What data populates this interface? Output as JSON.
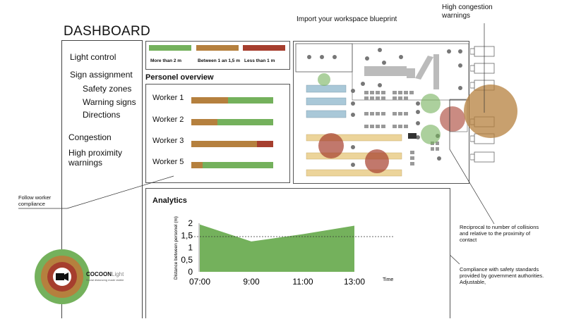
{
  "page_title": "DASHBOARD",
  "colors": {
    "green": "#74b15c",
    "brown": "#b5803e",
    "red": "#a63e2e",
    "table_blue": "#a9c8d8",
    "table_tan": "#ecd49a"
  },
  "sidebar": {
    "items": [
      {
        "label": "Light control"
      },
      {
        "label": "Sign assignment"
      },
      {
        "label": "Safety zones"
      },
      {
        "label": "Warning signs"
      },
      {
        "label": "Directions"
      },
      {
        "label": "Congestion"
      },
      {
        "label": "High proximity warnings"
      }
    ]
  },
  "legend": [
    {
      "label": "More than 2 m",
      "color": "#74b15c"
    },
    {
      "label": "Between 1 an 1,5 m",
      "color": "#b5803e"
    },
    {
      "label": "Less than 1 m",
      "color": "#a63e2e"
    }
  ],
  "personnel": {
    "title": "Personel overview",
    "workers": [
      {
        "label": "Worker 1",
        "segments": [
          {
            "color": "#b5803e",
            "frac": 0.45
          },
          {
            "color": "#74b15c",
            "frac": 0.55
          }
        ]
      },
      {
        "label": "Worker 2",
        "segments": [
          {
            "color": "#b5803e",
            "frac": 0.32
          },
          {
            "color": "#74b15c",
            "frac": 0.68
          }
        ]
      },
      {
        "label": "Worker 3",
        "segments": [
          {
            "color": "#b5803e",
            "frac": 0.8
          },
          {
            "color": "#a63e2e",
            "frac": 0.2
          }
        ]
      },
      {
        "label": "Worker 5",
        "segments": [
          {
            "color": "#b5803e",
            "frac": 0.14
          },
          {
            "color": "#74b15c",
            "frac": 0.86
          }
        ]
      }
    ]
  },
  "blueprint": {
    "import_label": "Import your workspace blueprint",
    "congestion_label": "High congestion warnings"
  },
  "analytics": {
    "title": "Analytics"
  },
  "chart_data": {
    "type": "area",
    "x": [
      "07:00",
      "9:00",
      "11:00",
      "13:00"
    ],
    "values": [
      1.95,
      1.25,
      1.55,
      1.9
    ],
    "threshold": 1.45,
    "ylim": [
      0,
      2
    ],
    "yticks": [
      "0",
      "0,5",
      "1",
      "1,5",
      "2"
    ],
    "ylabel": "Distance between personel (m)",
    "xlabel": "Time",
    "grid": false
  },
  "annotations": {
    "follow": "Follow worker compliance",
    "reciprocal": "Reciprocal to number of collisions and relative to the proximity of contact",
    "compliance": "Compliance with safety standards provided by government authorities. Adjustable,"
  },
  "logo": {
    "brand": "COCOON",
    "brand_suffix": "Light",
    "tagline": "Social distancing made visible",
    "icon": "camera-icon"
  }
}
